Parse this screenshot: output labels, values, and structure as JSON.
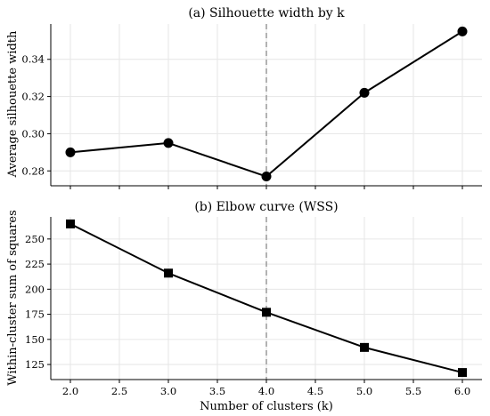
{
  "chart_data": [
    {
      "type": "line",
      "title": "(a) Silhouette width by k",
      "xlabel": "",
      "ylabel": "Average silhouette width",
      "x": [
        2.0,
        3.0,
        4.0,
        5.0,
        6.0
      ],
      "values": [
        0.29,
        0.295,
        0.277,
        0.322,
        0.355
      ],
      "xlim": [
        1.8,
        6.2
      ],
      "ylim": [
        0.272,
        0.359
      ],
      "yticks": [
        0.28,
        0.3,
        0.32,
        0.34
      ],
      "ytick_labels": [
        "0.28",
        "0.30",
        "0.32",
        "0.34"
      ],
      "xticks": [
        2.0,
        2.5,
        3.0,
        3.5,
        4.0,
        4.5,
        5.0,
        5.5,
        6.0
      ],
      "xtick_labels": [],
      "marker": "circle",
      "reference_line_x": 4.0,
      "grid": true
    },
    {
      "type": "line",
      "title": "(b) Elbow curve (WSS)",
      "xlabel": "Number of clusters (k)",
      "ylabel": "Within-cluster sum of squares",
      "x": [
        2.0,
        3.0,
        4.0,
        5.0,
        6.0
      ],
      "values": [
        265,
        216,
        177,
        142,
        117
      ],
      "xlim": [
        1.8,
        6.2
      ],
      "ylim": [
        110,
        272
      ],
      "yticks": [
        125,
        150,
        175,
        200,
        225,
        250
      ],
      "ytick_labels": [
        "125",
        "150",
        "175",
        "200",
        "225",
        "250"
      ],
      "xticks": [
        2.0,
        2.5,
        3.0,
        3.5,
        4.0,
        4.5,
        5.0,
        5.5,
        6.0
      ],
      "xtick_labels": [
        "2.0",
        "2.5",
        "3.0",
        "3.5",
        "4.0",
        "4.5",
        "5.0",
        "5.5",
        "6.0"
      ],
      "marker": "square",
      "reference_line_x": 4.0,
      "grid": true
    }
  ]
}
